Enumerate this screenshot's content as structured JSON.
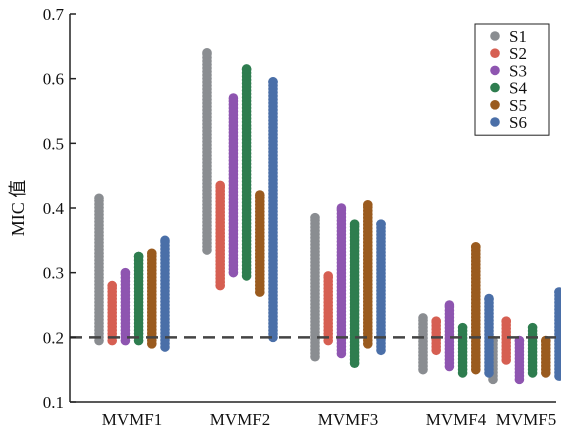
{
  "chart_data": {
    "type": "scatter",
    "title": "",
    "xlabel": "",
    "ylabel": "MIC 值",
    "categories": [
      "MVMF1",
      "MVMF2",
      "MVMF3",
      "MVMF4",
      "MVMF5"
    ],
    "ylim": [
      0.1,
      0.7
    ],
    "yticks": [
      "0.1",
      "0.2",
      "0.3",
      "0.4",
      "0.5",
      "0.6",
      "0.7"
    ],
    "reference_line": {
      "y": 0.2,
      "style": "dashed",
      "color": "#444444"
    },
    "grid": false,
    "legend_position": "top-right",
    "series": [
      {
        "name": "S1",
        "color": "#8a8d91",
        "ranges": [
          [
            0.195,
            0.415
          ],
          [
            0.335,
            0.64
          ],
          [
            0.17,
            0.385
          ],
          [
            0.15,
            0.23
          ],
          [
            0.135,
            0.195
          ]
        ]
      },
      {
        "name": "S2",
        "color": "#d65f52",
        "ranges": [
          [
            0.195,
            0.28
          ],
          [
            0.28,
            0.435
          ],
          [
            0.195,
            0.295
          ],
          [
            0.18,
            0.225
          ],
          [
            0.165,
            0.225
          ]
        ]
      },
      {
        "name": "S3",
        "color": "#8e55b0",
        "ranges": [
          [
            0.195,
            0.3
          ],
          [
            0.3,
            0.57
          ],
          [
            0.175,
            0.4
          ],
          [
            0.155,
            0.25
          ],
          [
            0.135,
            0.195
          ]
        ]
      },
      {
        "name": "S4",
        "color": "#2e7d4f",
        "ranges": [
          [
            0.195,
            0.325
          ],
          [
            0.295,
            0.615
          ],
          [
            0.16,
            0.375
          ],
          [
            0.145,
            0.215
          ],
          [
            0.145,
            0.215
          ]
        ]
      },
      {
        "name": "S5",
        "color": "#9a5b1f",
        "ranges": [
          [
            0.19,
            0.33
          ],
          [
            0.27,
            0.42
          ],
          [
            0.19,
            0.405
          ],
          [
            0.15,
            0.34
          ],
          [
            0.145,
            0.195
          ]
        ]
      },
      {
        "name": "S6",
        "color": "#4a6fa8",
        "ranges": [
          [
            0.185,
            0.35
          ],
          [
            0.2,
            0.595
          ],
          [
            0.18,
            0.375
          ],
          [
            0.145,
            0.26
          ],
          [
            0.14,
            0.27
          ]
        ]
      }
    ]
  }
}
